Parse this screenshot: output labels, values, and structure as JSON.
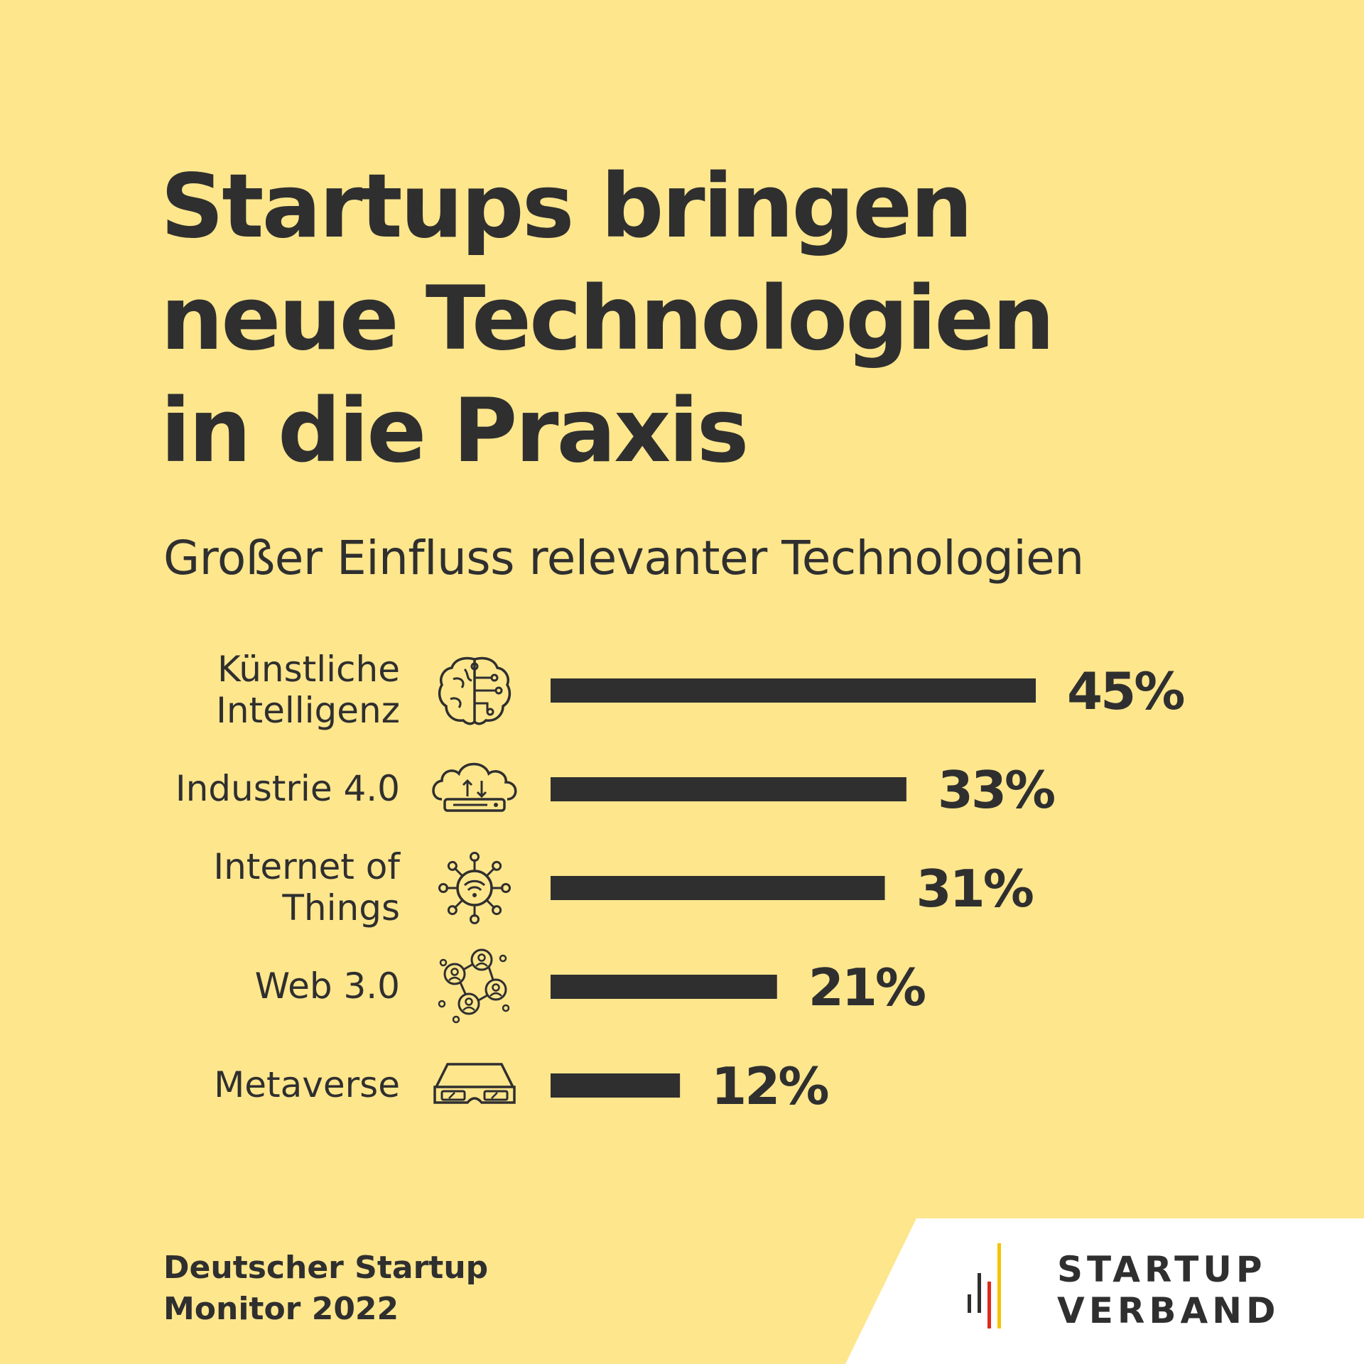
{
  "title_lines": [
    "Startups bringen",
    "neue Technologien",
    "in die Praxis"
  ],
  "chart_data": {
    "type": "bar",
    "orientation": "horizontal",
    "title": "Startups bringen neue Technologien in die Praxis",
    "subtitle": "Großer Einfluss relevanter Technologien",
    "categories": [
      {
        "name": "Künstliche Intelligenz",
        "lines": [
          "Künstliche",
          "Intelligenz"
        ],
        "icon": "brain-circuit-icon"
      },
      {
        "name": "Industrie 4.0",
        "lines": [
          "Industrie 4.0"
        ],
        "icon": "cloud-router-icon"
      },
      {
        "name": "Internet of Things",
        "lines": [
          "Internet of",
          "Things"
        ],
        "icon": "wifi-network-icon"
      },
      {
        "name": "Web 3.0",
        "lines": [
          "Web 3.0"
        ],
        "icon": "user-network-icon"
      },
      {
        "name": "Metaverse",
        "lines": [
          "Metaverse"
        ],
        "icon": "vr-glasses-icon"
      }
    ],
    "values": [
      45,
      33,
      31,
      21,
      12
    ],
    "value_labels": [
      "45%",
      "33%",
      "31%",
      "21%",
      "12%"
    ],
    "unit": "%",
    "xlim": [
      0,
      45
    ],
    "grid": false,
    "legend": "none"
  },
  "source": {
    "line1": "Deutscher Startup",
    "line2": "Monitor 2022"
  },
  "logo": {
    "line1": "STARTUP",
    "line2": "VERBAND"
  },
  "colors": {
    "background": "#fee68d",
    "bar": "#2f2f2f",
    "text": "#2f2f2f",
    "logo_black": "#2f2f2f",
    "logo_red": "#dd2a1b",
    "logo_gold": "#f5c400"
  }
}
